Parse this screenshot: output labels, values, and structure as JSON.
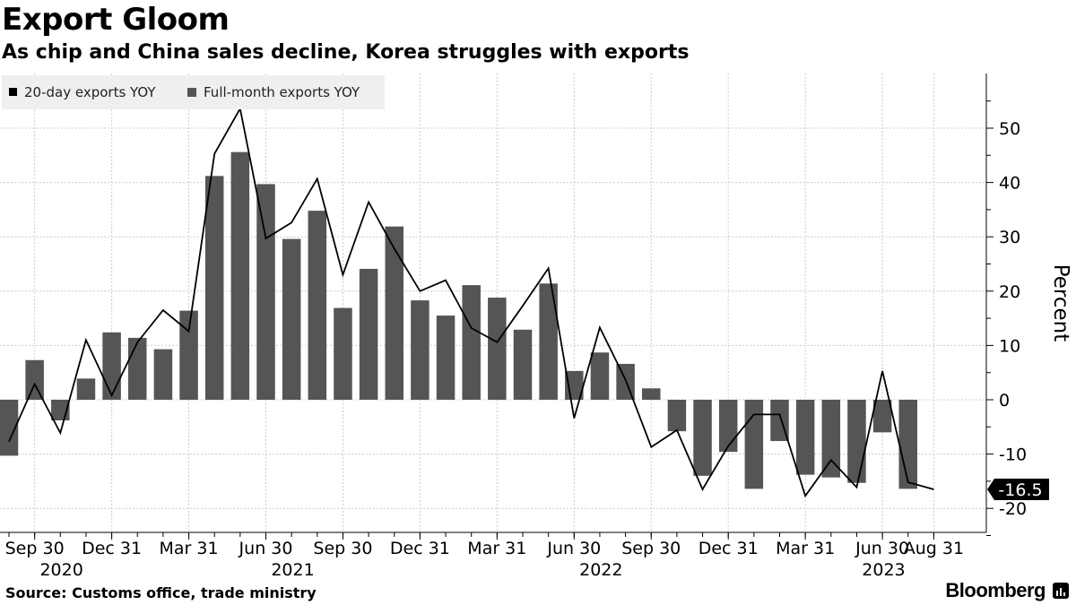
{
  "header": {
    "title": "Export Gloom",
    "subtitle": "As chip and China sales decline, Korea struggles with exports"
  },
  "footer": {
    "source": "Source: Customs office, trade ministry",
    "brand": "Bloomberg"
  },
  "colors": {
    "bar": "#555555",
    "line": "#000000",
    "grid": "#cccccc"
  },
  "chart_data": {
    "type": "bar",
    "title": "Export Gloom",
    "subtitle": "As chip and China sales decline, Korea struggles with exports",
    "ylabel": "Percent",
    "ylim": [
      -25,
      60
    ],
    "yticks": [
      -20,
      -10,
      0,
      10,
      20,
      30,
      40,
      50
    ],
    "legend": {
      "position": "top-left",
      "entries": [
        "20-day exports YOY",
        "Full-month exports YOY"
      ]
    },
    "x_tick_labels": [
      {
        "idx": 1,
        "label": "Sep 30"
      },
      {
        "idx": 4,
        "label": "Dec 31"
      },
      {
        "idx": 7,
        "label": "Mar 31"
      },
      {
        "idx": 10,
        "label": "Jun 30"
      },
      {
        "idx": 13,
        "label": "Sep 30"
      },
      {
        "idx": 16,
        "label": "Dec 31"
      },
      {
        "idx": 19,
        "label": "Mar 31"
      },
      {
        "idx": 22,
        "label": "Jun 30"
      },
      {
        "idx": 25,
        "label": "Sep 30"
      },
      {
        "idx": 28,
        "label": "Dec 31"
      },
      {
        "idx": 31,
        "label": "Mar 31"
      },
      {
        "idx": 34,
        "label": "Jun 30"
      },
      {
        "idx": 36,
        "label": "Aug 31"
      }
    ],
    "year_labels": [
      {
        "idx": 1,
        "label": "2020"
      },
      {
        "idx": 10,
        "label": "2021"
      },
      {
        "idx": 22,
        "label": "2022"
      },
      {
        "idx": 33,
        "label": "2023"
      }
    ],
    "months": [
      "Aug 2020",
      "Sep 2020",
      "Oct 2020",
      "Nov 2020",
      "Dec 2020",
      "Jan 2021",
      "Feb 2021",
      "Mar 2021",
      "Apr 2021",
      "May 2021",
      "Jun 2021",
      "Jul 2021",
      "Aug 2021",
      "Sep 2021",
      "Oct 2021",
      "Nov 2021",
      "Dec 2021",
      "Jan 2022",
      "Feb 2022",
      "Mar 2022",
      "Apr 2022",
      "May 2022",
      "Jun 2022",
      "Jul 2022",
      "Aug 2022",
      "Sep 2022",
      "Oct 2022",
      "Nov 2022",
      "Dec 2022",
      "Jan 2023",
      "Feb 2023",
      "Mar 2023",
      "Apr 2023",
      "May 2023",
      "Jun 2023",
      "Jul 2023",
      "Aug 2023"
    ],
    "series": [
      {
        "name": "Full-month exports YOY",
        "kind": "bar",
        "values": [
          -10.3,
          7.3,
          -3.8,
          3.9,
          12.4,
          11.4,
          9.3,
          16.4,
          41.2,
          45.6,
          39.7,
          29.6,
          34.8,
          16.9,
          24.1,
          31.9,
          18.3,
          15.5,
          21.1,
          18.8,
          12.9,
          21.4,
          5.3,
          8.7,
          6.6,
          2.1,
          -5.8,
          -14.0,
          -9.6,
          -16.4,
          -7.6,
          -13.8,
          -14.3,
          -15.3,
          -6.0,
          -16.4,
          null
        ]
      },
      {
        "name": "20-day exports YOY",
        "kind": "line",
        "values": [
          -7.7,
          2.9,
          -6.1,
          11.0,
          0.8,
          10.6,
          16.5,
          12.6,
          45.3,
          53.6,
          29.7,
          32.6,
          40.7,
          23.0,
          36.4,
          27.8,
          20.0,
          22.0,
          13.2,
          10.6,
          17.3,
          24.2,
          -3.4,
          13.3,
          3.7,
          -8.7,
          -5.6,
          -16.5,
          -8.5,
          -2.7,
          -2.7,
          -17.7,
          -11.1,
          -16.1,
          5.3,
          -15.2,
          -16.5
        ]
      }
    ],
    "last_value_label": "-16.5"
  }
}
